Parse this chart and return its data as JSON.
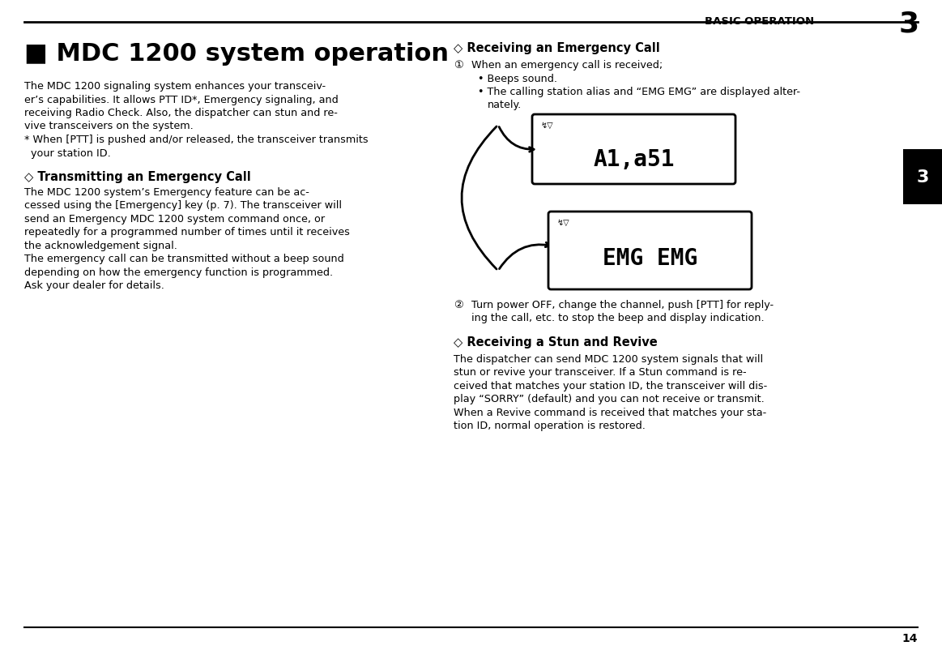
{
  "page_number": "14",
  "chapter_number": "3",
  "chapter_label": "BASIC OPERATION",
  "title": "■ MDC 1200 system operation",
  "bg_color": "#ffffff",
  "line_color": "#000000",
  "sidebar_box_color": "#000000",
  "sidebar_text_color": "#ffffff",
  "sidebar_text": "3",
  "intro_text_lines": [
    "The MDC 1200 signaling system enhances your transceiv-",
    "er’s capabilities. It allows PTT ID*, Emergency signaling, and",
    "receiving Radio Check. Also, the dispatcher can stun and re-",
    "vive transceivers on the system.",
    "* When [PTT] is pushed and/or released, the transceiver transmits",
    "  your station ID."
  ],
  "section1_title": "◇ Transmitting an Emergency Call",
  "section1_body_lines": [
    "The MDC 1200 system’s Emergency feature can be ac-",
    "cessed using the [Emergency] key (p. 7). The transceiver will",
    "send an Emergency MDC 1200 system command once, or",
    "repeatedly for a programmed number of times until it receives",
    "the acknowledgement signal.",
    "The emergency call can be transmitted without a beep sound",
    "depending on how the emergency function is programmed.",
    "Ask your dealer for details."
  ],
  "section2_title": "◇ Receiving an Emergency Call",
  "section2_q_label": "①",
  "section2_q_text": "When an emergency call is received;",
  "section2_bullet1": "• Beeps sound.",
  "section2_bullet2a": "• The calling station alias and “EMG EMG” are displayed alter-",
  "section2_bullet2b": "   nately.",
  "section2_w_label": "②",
  "section2_w_text_lines": [
    "Turn power OFF, change the channel, push [PTT] for reply-",
    "ing the call, etc. to stop the beep and display indication."
  ],
  "section3_title": "◇ Receiving a Stun and Revive",
  "section3_body_lines": [
    "The dispatcher can send MDC 1200 system signals that will",
    "stun or revive your transceiver. If a Stun command is re-",
    "ceived that matches your station ID, the transceiver will dis-",
    "play “SORRY” (default) and you can not receive or transmit.",
    "When a Revive command is received that matches your sta-",
    "tion ID, normal operation is restored."
  ],
  "display1_text": "A1,a51",
  "display2_text": "EMG EMG",
  "display_bg": "#ffffff",
  "display_border": "#000000"
}
